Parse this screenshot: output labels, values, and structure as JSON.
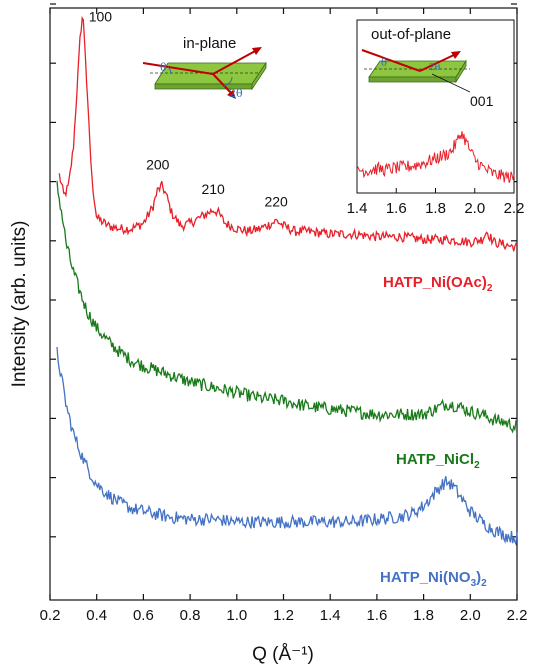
{
  "chart_data": {
    "type": "line",
    "title": "",
    "xlabel": "Q (Å⁻¹)",
    "ylabel": "Intensity (arb. units)",
    "xlim": [
      0.2,
      2.2
    ],
    "ylim": [
      0,
      11
    ],
    "x_ticks": [
      "0.2",
      "0.4",
      "0.6",
      "0.8",
      "1.0",
      "1.2",
      "1.4",
      "1.6",
      "1.8",
      "2.0",
      "2.2"
    ],
    "y_ticks_labeled": false,
    "grid": false,
    "legend": "labels beside curves",
    "series": [
      {
        "name": "HATP_Ni(OAc)2",
        "label_main": "HATP_Ni(OAc)",
        "label_sub": "2",
        "color": "#e8202a",
        "x": [
          0.24,
          0.26,
          0.28,
          0.3,
          0.32,
          0.33,
          0.34,
          0.35,
          0.36,
          0.38,
          0.4,
          0.45,
          0.5,
          0.55,
          0.6,
          0.64,
          0.66,
          0.68,
          0.7,
          0.72,
          0.76,
          0.8,
          0.84,
          0.88,
          0.9,
          0.92,
          0.95,
          1.0,
          1.05,
          1.1,
          1.15,
          1.17,
          1.2,
          1.25,
          1.3,
          1.4,
          1.5,
          1.6,
          1.7,
          1.8,
          1.9,
          2.0,
          2.05,
          2.07,
          2.1,
          2.15,
          2.2
        ],
        "y": [
          7.9,
          7.5,
          7.7,
          8.4,
          9.8,
          10.5,
          10.9,
          10.3,
          9.3,
          7.8,
          7.1,
          6.95,
          6.9,
          6.9,
          7.0,
          7.3,
          7.6,
          7.7,
          7.5,
          7.2,
          6.95,
          7.0,
          7.1,
          7.2,
          7.25,
          7.2,
          7.0,
          6.9,
          6.85,
          6.9,
          7.0,
          7.05,
          6.95,
          6.85,
          6.85,
          6.8,
          6.8,
          6.75,
          6.75,
          6.7,
          6.7,
          6.65,
          6.7,
          6.85,
          6.65,
          6.6,
          6.55
        ]
      },
      {
        "name": "HATP_NiCl2",
        "label_main": "HATP_NiCl",
        "label_sub": "2",
        "color": "#1a7a1a",
        "x": [
          0.23,
          0.25,
          0.27,
          0.3,
          0.33,
          0.36,
          0.4,
          0.45,
          0.5,
          0.55,
          0.6,
          0.7,
          0.8,
          0.9,
          1.0,
          1.1,
          1.2,
          1.3,
          1.4,
          1.5,
          1.6,
          1.7,
          1.8,
          1.85,
          1.9,
          1.95,
          2.0,
          2.05,
          2.1,
          2.15,
          2.2
        ],
        "y": [
          7.7,
          7.2,
          6.6,
          6.1,
          5.7,
          5.35,
          5.05,
          4.8,
          4.6,
          4.45,
          4.35,
          4.2,
          4.05,
          3.95,
          3.85,
          3.75,
          3.7,
          3.6,
          3.55,
          3.5,
          3.45,
          3.45,
          3.45,
          3.55,
          3.65,
          3.6,
          3.5,
          3.45,
          3.35,
          3.3,
          3.2
        ]
      },
      {
        "name": "HATP_Ni(NO3)2",
        "label_main": "HATP_Ni(NO",
        "label_sub1": "3",
        "label_mid": ")",
        "label_sub": "2",
        "color": "#4472c4",
        "x": [
          0.23,
          0.25,
          0.27,
          0.3,
          0.33,
          0.36,
          0.4,
          0.45,
          0.5,
          0.55,
          0.6,
          0.7,
          0.8,
          0.9,
          1.0,
          1.1,
          1.2,
          1.3,
          1.4,
          1.5,
          1.6,
          1.7,
          1.75,
          1.8,
          1.85,
          1.88,
          1.9,
          1.93,
          1.96,
          2.0,
          2.05,
          2.1,
          2.15,
          2.2
        ],
        "y": [
          4.6,
          4.1,
          3.6,
          3.1,
          2.75,
          2.45,
          2.15,
          1.95,
          1.8,
          1.7,
          1.65,
          1.55,
          1.5,
          1.5,
          1.45,
          1.45,
          1.45,
          1.45,
          1.45,
          1.45,
          1.5,
          1.55,
          1.6,
          1.75,
          2.0,
          2.15,
          2.2,
          2.1,
          1.9,
          1.65,
          1.45,
          1.3,
          1.2,
          1.15
        ]
      }
    ],
    "peak_labels": [
      {
        "text": "100",
        "x": 0.34,
        "y": 10.9
      },
      {
        "text": "200",
        "x": 0.68,
        "y": 7.7
      },
      {
        "text": "210",
        "x": 0.9,
        "y": 7.25
      },
      {
        "text": "220",
        "x": 1.17,
        "y": 7.05
      }
    ],
    "inset": {
      "type": "line",
      "title": "out-of-plane",
      "xlim": [
        1.4,
        2.2
      ],
      "ylim": [
        0,
        10
      ],
      "x_ticks": [
        "1.4",
        "1.6",
        "1.8",
        "2.0",
        "2.2"
      ],
      "peak_label": {
        "text": "001",
        "x": 1.93,
        "y": 6.6
      },
      "series": {
        "color": "#e8202a",
        "x": [
          1.4,
          1.45,
          1.5,
          1.55,
          1.6,
          1.65,
          1.7,
          1.75,
          1.8,
          1.85,
          1.88,
          1.91,
          1.93,
          1.95,
          1.98,
          2.0,
          2.05,
          2.1,
          2.15,
          2.2
        ],
        "y": [
          2.5,
          2.4,
          2.6,
          2.5,
          2.7,
          2.8,
          3.0,
          3.3,
          3.7,
          4.1,
          4.5,
          5.5,
          6.5,
          5.8,
          4.4,
          3.6,
          2.6,
          2.0,
          1.8,
          1.6
        ]
      }
    },
    "schematic_main": {
      "title": "in-plane",
      "angle1": "θ",
      "angle2": "2θ"
    },
    "schematic_inset": {
      "angle1": "θ",
      "angle2": "2θ"
    },
    "colors": {
      "substrate_fill": "#8dc63f",
      "substrate_edge": "#3c6b1a",
      "beam": "#c00000",
      "angle": "#2a6ebb"
    }
  }
}
